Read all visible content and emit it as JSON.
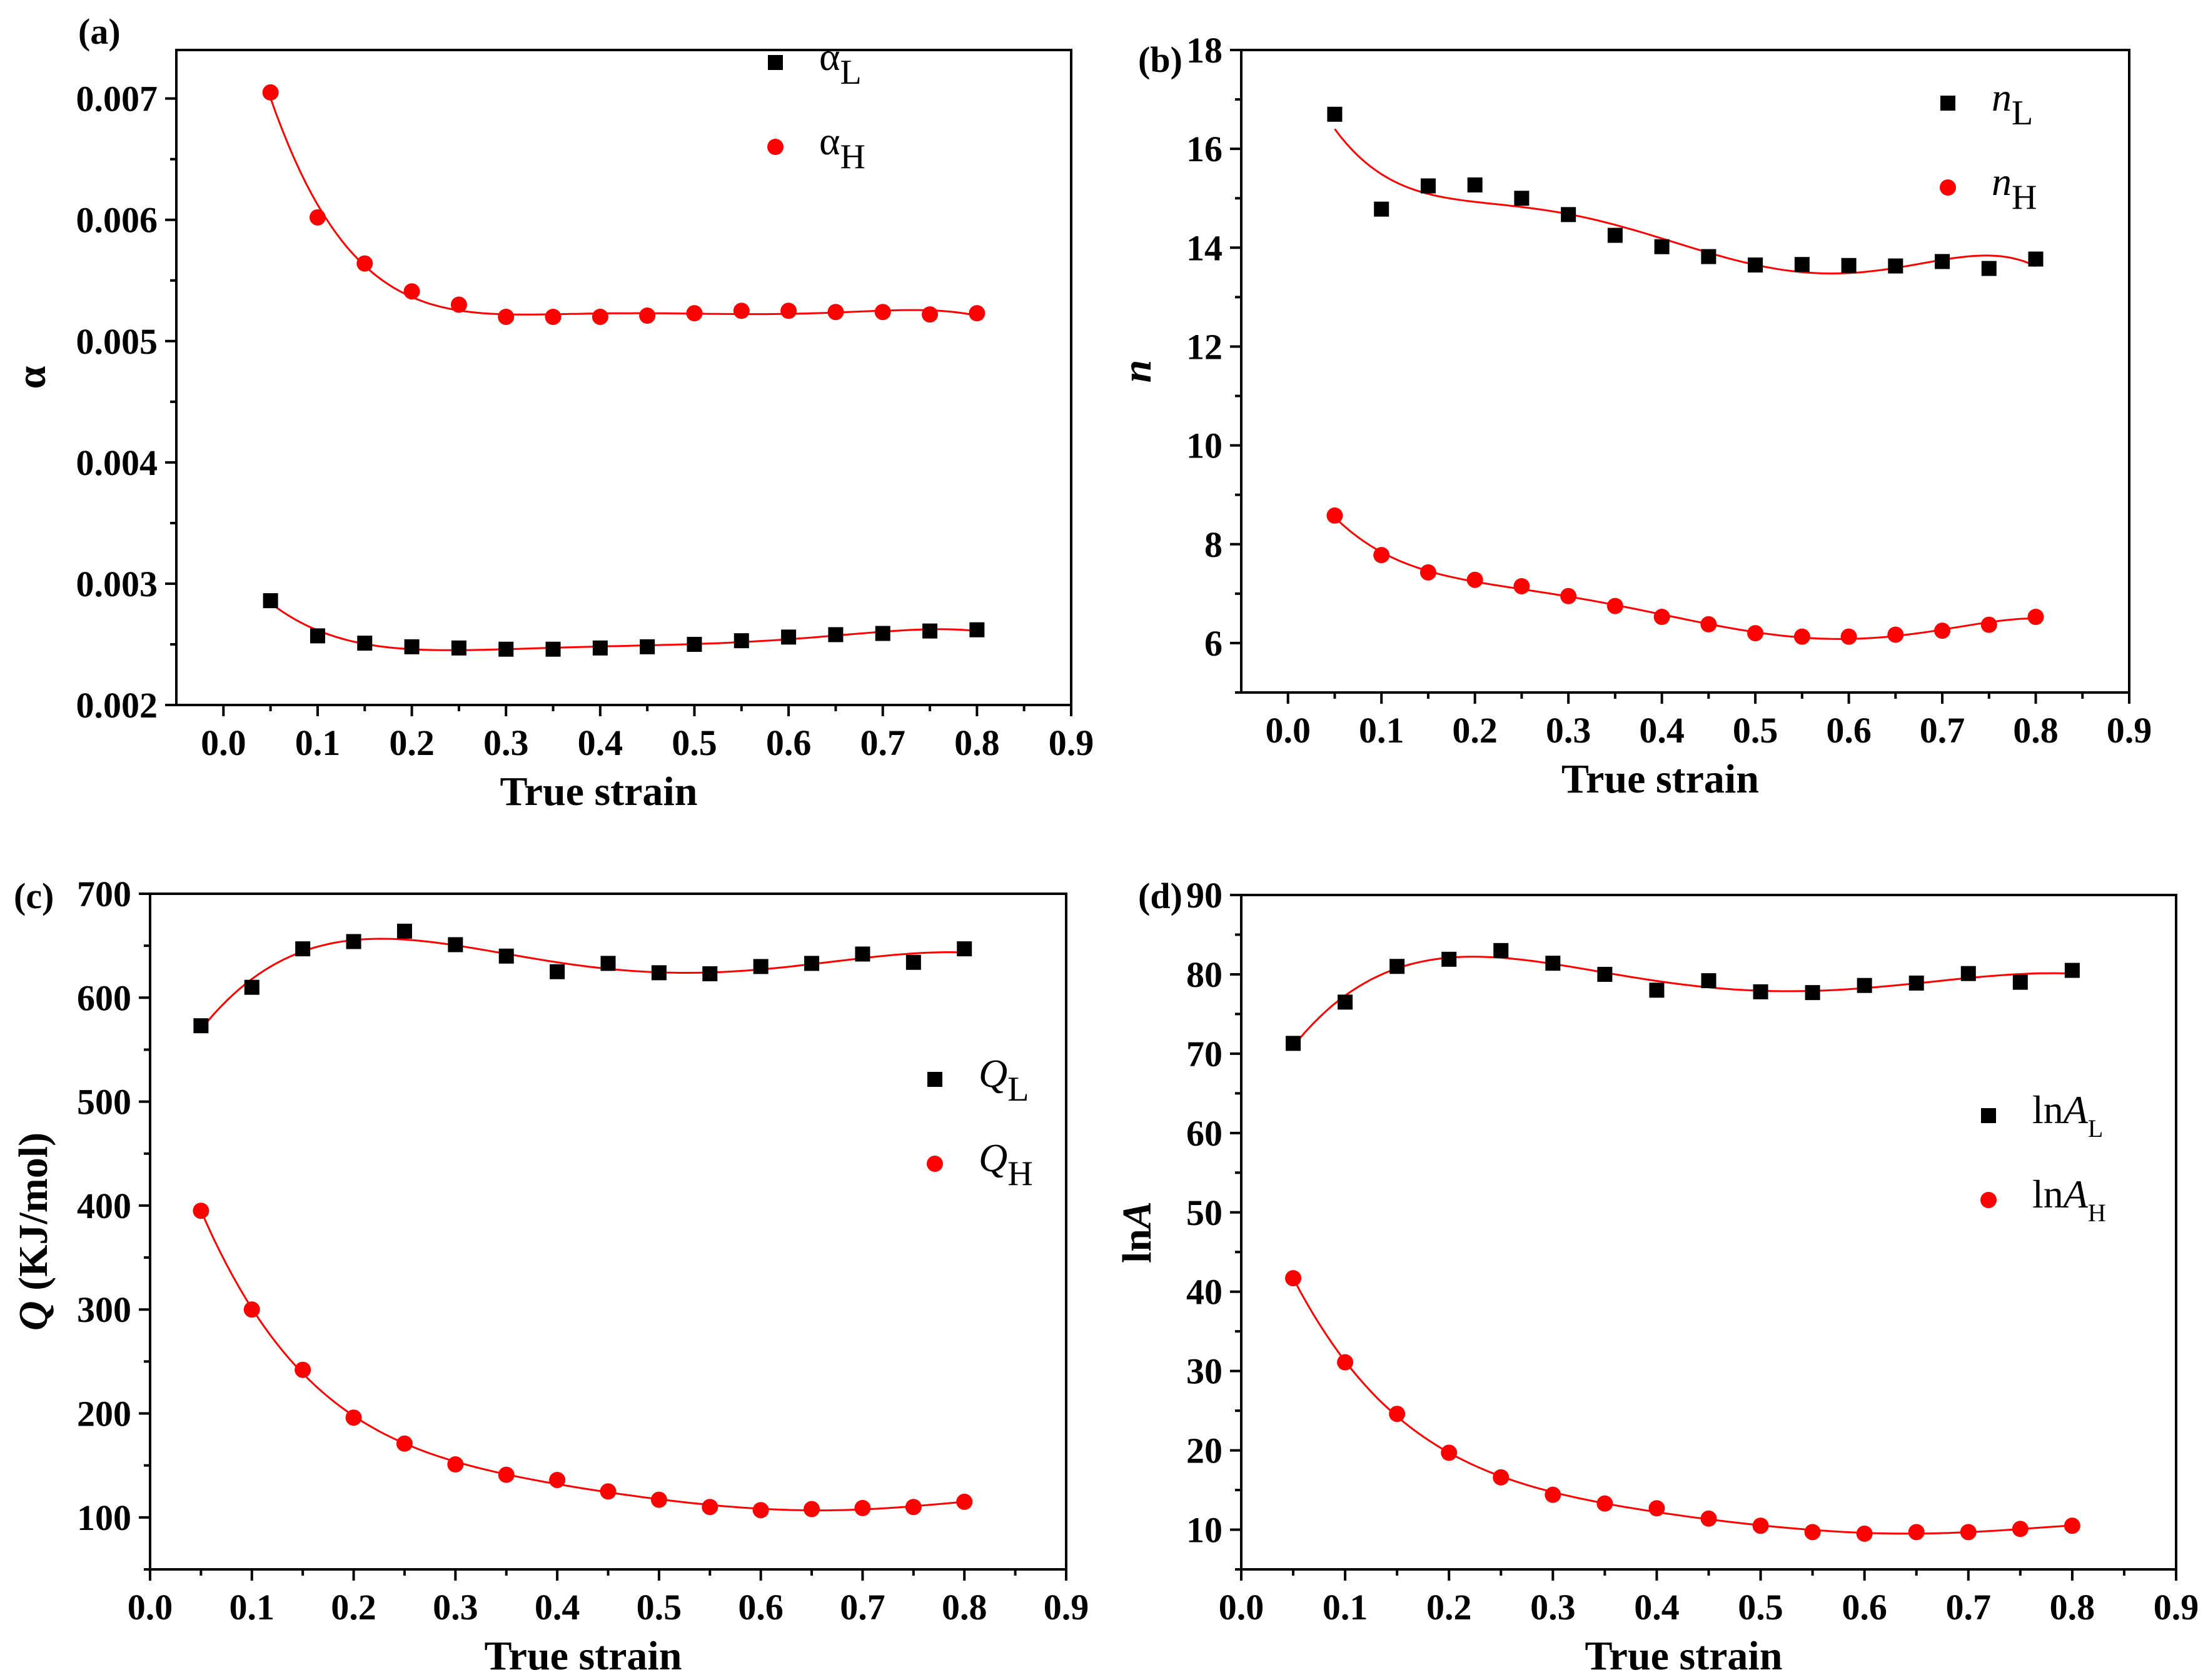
{
  "chart_data": [
    {
      "type": "scatter",
      "panel_label": "(a)",
      "xlabel": "True strain",
      "ylabel": "α",
      "ylabel_italic": false,
      "xlim": [
        -0.05,
        0.9
      ],
      "ylim": [
        0.002,
        0.0074
      ],
      "xticks": [
        0.0,
        0.1,
        0.2,
        0.3,
        0.4,
        0.5,
        0.6,
        0.7,
        0.8,
        0.9
      ],
      "xtick_labels": [
        "0.0",
        "0.1",
        "0.2",
        "0.3",
        "0.4",
        "0.5",
        "0.6",
        "0.7",
        "0.8",
        "0.9"
      ],
      "yticks": [
        0.002,
        0.003,
        0.004,
        0.005,
        0.006,
        0.007
      ],
      "ytick_labels": [
        "0.002",
        "0.003",
        "0.004",
        "0.005",
        "0.006",
        "0.007"
      ],
      "legend_position": "top-right",
      "x": [
        0.05,
        0.1,
        0.15,
        0.2,
        0.25,
        0.3,
        0.35,
        0.4,
        0.45,
        0.5,
        0.55,
        0.6,
        0.65,
        0.7,
        0.75,
        0.8
      ],
      "series": [
        {
          "name": "αL",
          "legend_main": "α",
          "legend_sub": "L",
          "legend_italic": false,
          "marker": "square",
          "color": "#000000",
          "values": [
            0.00286,
            0.00257,
            0.00251,
            0.00248,
            0.00247,
            0.00246,
            0.00246,
            0.00247,
            0.00248,
            0.0025,
            0.00253,
            0.00256,
            0.00258,
            0.00259,
            0.00261,
            0.00262
          ]
        },
        {
          "name": "αH",
          "legend_main": "α",
          "legend_sub": "H",
          "legend_italic": false,
          "marker": "circle",
          "color": "#ff0000",
          "values": [
            0.00705,
            0.00602,
            0.00564,
            0.00541,
            0.0053,
            0.0052,
            0.0052,
            0.0052,
            0.00521,
            0.00523,
            0.00525,
            0.00525,
            0.00524,
            0.00524,
            0.00522,
            0.00523
          ]
        }
      ]
    },
    {
      "type": "scatter",
      "panel_label": "(b)",
      "xlabel": "True strain",
      "ylabel": "n",
      "ylabel_italic": true,
      "xlim": [
        -0.05,
        0.9
      ],
      "ylim": [
        5,
        18
      ],
      "xticks": [
        0.0,
        0.1,
        0.2,
        0.3,
        0.4,
        0.5,
        0.6,
        0.7,
        0.8,
        0.9
      ],
      "xtick_labels": [
        "0.0",
        "0.1",
        "0.2",
        "0.3",
        "0.4",
        "0.5",
        "0.6",
        "0.7",
        "0.8",
        "0.9"
      ],
      "yticks": [
        6,
        8,
        10,
        12,
        14,
        16,
        18
      ],
      "ytick_labels": [
        "6",
        "8",
        "10",
        "12",
        "14",
        "16",
        "18"
      ],
      "legend_position": "top-right",
      "x": [
        0.05,
        0.1,
        0.15,
        0.2,
        0.25,
        0.3,
        0.35,
        0.4,
        0.45,
        0.5,
        0.55,
        0.6,
        0.65,
        0.7,
        0.75,
        0.8
      ],
      "series": [
        {
          "name": "nL",
          "legend_main": "n",
          "legend_sub": "L",
          "legend_italic": true,
          "marker": "square",
          "color": "#000000",
          "values": [
            16.7,
            14.78,
            15.25,
            15.27,
            15.0,
            14.67,
            14.25,
            14.02,
            13.82,
            13.65,
            13.66,
            13.64,
            13.63,
            13.72,
            13.58,
            13.77
          ]
        },
        {
          "name": "nH",
          "legend_main": "n",
          "legend_sub": "H",
          "legend_italic": true,
          "marker": "circle",
          "color": "#ff0000",
          "values": [
            8.58,
            7.78,
            7.43,
            7.28,
            7.15,
            6.95,
            6.75,
            6.53,
            6.38,
            6.2,
            6.13,
            6.13,
            6.17,
            6.25,
            6.37,
            6.53
          ]
        }
      ]
    },
    {
      "type": "scatter",
      "panel_label": "(c)",
      "xlabel": "True strain",
      "ylabel": "Q (KJ/mol)",
      "ylabel_main": "Q",
      "ylabel_rest": " (KJ/mol)",
      "ylabel_italic": true,
      "xlim": [
        0.0,
        0.9
      ],
      "ylim": [
        50,
        700
      ],
      "xticks": [
        0.0,
        0.1,
        0.2,
        0.3,
        0.4,
        0.5,
        0.6,
        0.7,
        0.8,
        0.9
      ],
      "xtick_labels": [
        "0.0",
        "0.1",
        "0.2",
        "0.3",
        "0.4",
        "0.5",
        "0.6",
        "0.7",
        "0.8",
        "0.9"
      ],
      "yticks": [
        100,
        200,
        300,
        400,
        500,
        600,
        700
      ],
      "ytick_labels": [
        "100",
        "200",
        "300",
        "400",
        "500",
        "600",
        "700"
      ],
      "legend_position": "center-right",
      "x": [
        0.05,
        0.1,
        0.15,
        0.2,
        0.25,
        0.3,
        0.35,
        0.4,
        0.45,
        0.5,
        0.55,
        0.6,
        0.65,
        0.7,
        0.75,
        0.8
      ],
      "series": [
        {
          "name": "QL",
          "legend_main": "Q",
          "legend_sub": "L",
          "legend_italic": true,
          "marker": "square",
          "color": "#000000",
          "values": [
            573,
            610,
            647,
            654,
            664,
            651,
            640,
            625,
            633,
            624,
            623,
            630,
            633,
            642,
            634,
            647
          ]
        },
        {
          "name": "QH",
          "legend_main": "Q",
          "legend_sub": "H",
          "legend_italic": true,
          "marker": "circle",
          "color": "#ff0000",
          "values": [
            395,
            300,
            242,
            196,
            171,
            151,
            141,
            136,
            125,
            117,
            110,
            107,
            108,
            109,
            110,
            115
          ]
        }
      ]
    },
    {
      "type": "scatter",
      "panel_label": "(d)",
      "xlabel": "True strain",
      "ylabel": "lnA",
      "ylabel_main": "ln",
      "ylabel_rest": "A",
      "ylabel_italic": false,
      "xlim": [
        0.0,
        0.9
      ],
      "ylim": [
        5,
        90
      ],
      "xticks": [
        0.0,
        0.1,
        0.2,
        0.3,
        0.4,
        0.5,
        0.6,
        0.7,
        0.8,
        0.9
      ],
      "xtick_labels": [
        "0.0",
        "0.1",
        "0.2",
        "0.3",
        "0.4",
        "0.5",
        "0.6",
        "0.7",
        "0.8",
        "0.9"
      ],
      "yticks": [
        10,
        20,
        30,
        40,
        50,
        60,
        70,
        80,
        90
      ],
      "ytick_labels": [
        "10",
        "20",
        "30",
        "40",
        "50",
        "60",
        "70",
        "80",
        "90"
      ],
      "legend_position": "center-right",
      "x": [
        0.05,
        0.1,
        0.15,
        0.2,
        0.25,
        0.3,
        0.35,
        0.4,
        0.45,
        0.5,
        0.55,
        0.6,
        0.65,
        0.7,
        0.75,
        0.8
      ],
      "series": [
        {
          "name": "lnAL",
          "legend_pre": "ln",
          "legend_main": "A",
          "legend_sub": "L",
          "legend_italic": true,
          "marker": "square",
          "color": "#000000",
          "values": [
            71.3,
            76.5,
            81.0,
            81.9,
            83.0,
            81.4,
            80.0,
            78.0,
            79.2,
            77.8,
            77.7,
            78.6,
            78.9,
            80.1,
            79.0,
            80.5
          ]
        },
        {
          "name": "lnAH",
          "legend_pre": "ln",
          "legend_main": "A",
          "legend_sub": "H",
          "legend_italic": true,
          "marker": "circle",
          "color": "#ff0000",
          "values": [
            41.7,
            31.1,
            24.6,
            19.7,
            16.6,
            14.4,
            13.3,
            12.7,
            11.4,
            10.5,
            9.7,
            9.5,
            9.7,
            9.7,
            10.1,
            10.5
          ]
        }
      ]
    }
  ]
}
